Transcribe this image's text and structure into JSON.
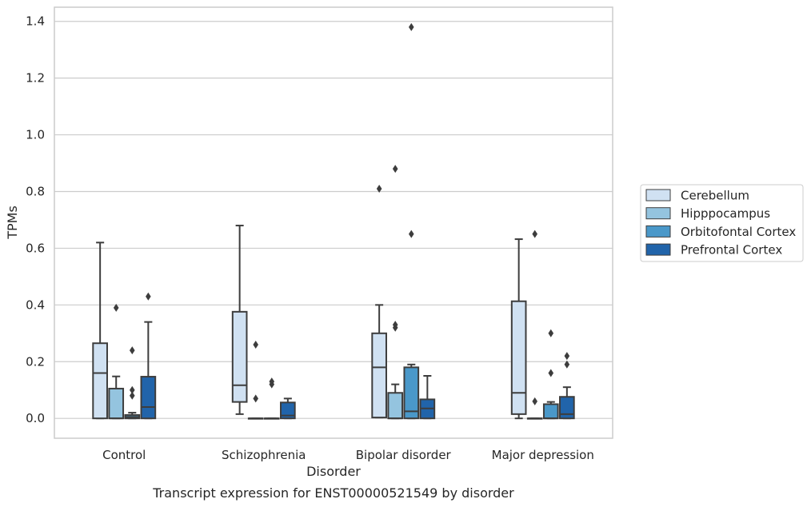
{
  "chart_data": {
    "type": "boxplot",
    "title": "Transcript expression for ENST00000521549 by disorder",
    "xlabel": "Disorder",
    "ylabel": "TPMs",
    "ylim": [
      -0.07,
      1.45
    ],
    "yticks": [
      "0.0",
      "0.2",
      "0.4",
      "0.6",
      "0.8",
      "1.0",
      "1.2",
      "1.4"
    ],
    "grid": true,
    "legend_position": "right",
    "categories": [
      "Control",
      "Schizophrenia",
      "Bipolar disorder",
      "Major depression"
    ],
    "series": [
      {
        "name": "Cerebellum",
        "color": "#d0e1f2",
        "boxes": [
          {
            "whislo": 0.0,
            "q1": 0.0,
            "med": 0.16,
            "q3": 0.265,
            "whishi": 0.62,
            "fliers": []
          },
          {
            "whislo": 0.015,
            "q1": 0.058,
            "med": 0.117,
            "q3": 0.376,
            "whishi": 0.68,
            "fliers": []
          },
          {
            "whislo": 0.003,
            "q1": 0.003,
            "med": 0.18,
            "q3": 0.3,
            "whishi": 0.4,
            "fliers": [
              0.81
            ]
          },
          {
            "whislo": 0.0,
            "q1": 0.015,
            "med": 0.09,
            "q3": 0.413,
            "whishi": 0.632,
            "fliers": []
          }
        ]
      },
      {
        "name": "Hipppocampus",
        "color": "#94c4df",
        "boxes": [
          {
            "whislo": 0.0,
            "q1": 0.0,
            "med": 0.0,
            "q3": 0.105,
            "whishi": 0.148,
            "fliers": [
              0.39
            ]
          },
          {
            "whislo": 0.0,
            "q1": 0.0,
            "med": 0.0,
            "q3": 0.0,
            "whishi": 0.0,
            "fliers": [
              0.26,
              0.07
            ]
          },
          {
            "whislo": 0.0,
            "q1": 0.0,
            "med": 0.0,
            "q3": 0.09,
            "whishi": 0.12,
            "fliers": [
              0.88,
              0.33,
              0.32
            ]
          },
          {
            "whislo": 0.0,
            "q1": 0.0,
            "med": 0.0,
            "q3": 0.0,
            "whishi": 0.0,
            "fliers": [
              0.65,
              0.06
            ]
          }
        ]
      },
      {
        "name": "Orbitofontal Cortex",
        "color": "#4a98c9",
        "boxes": [
          {
            "whislo": 0.0,
            "q1": 0.0,
            "med": 0.005,
            "q3": 0.012,
            "whishi": 0.02,
            "fliers": [
              0.24,
              0.1,
              0.08
            ]
          },
          {
            "whislo": 0.0,
            "q1": 0.0,
            "med": 0.0,
            "q3": 0.0,
            "whishi": 0.0,
            "fliers": [
              0.13,
              0.12
            ]
          },
          {
            "whislo": 0.0,
            "q1": 0.0,
            "med": 0.025,
            "q3": 0.18,
            "whishi": 0.19,
            "fliers": [
              1.38,
              0.65
            ]
          },
          {
            "whislo": 0.0,
            "q1": 0.0,
            "med": 0.0,
            "q3": 0.05,
            "whishi": 0.058,
            "fliers": [
              0.3,
              0.16
            ]
          }
        ]
      },
      {
        "name": "Prefrontal Cortex",
        "color": "#2164aa",
        "boxes": [
          {
            "whislo": 0.0,
            "q1": 0.0,
            "med": 0.04,
            "q3": 0.147,
            "whishi": 0.34,
            "fliers": [
              0.43
            ]
          },
          {
            "whislo": 0.0,
            "q1": 0.0,
            "med": 0.01,
            "q3": 0.056,
            "whishi": 0.07,
            "fliers": []
          },
          {
            "whislo": 0.0,
            "q1": 0.0,
            "med": 0.035,
            "q3": 0.067,
            "whishi": 0.15,
            "fliers": []
          },
          {
            "whislo": 0.0,
            "q1": 0.0,
            "med": 0.015,
            "q3": 0.076,
            "whishi": 0.11,
            "fliers": [
              0.22,
              0.19
            ]
          }
        ]
      }
    ]
  }
}
